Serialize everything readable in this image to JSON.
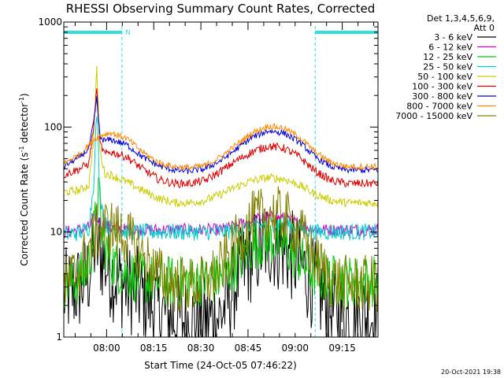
{
  "chart_data": {
    "type": "line",
    "title": "RHESSI Observing Summary Count Rates, Corrected",
    "xlabel": "Start Time (24-Oct-05 07:46:22)",
    "ylabel_main": "Corrected Count Rate (s",
    "ylabel_sup1": "-1",
    "ylabel_mid": " detector",
    "ylabel_sup2": "-1",
    "ylabel_end": ")",
    "y_scale": "log",
    "ylim": [
      1,
      1000
    ],
    "y_ticks": [
      1,
      10,
      100,
      1000
    ],
    "y_tick_labels": [
      "1",
      "10",
      "100",
      "1000"
    ],
    "xlim_minutes": [
      0,
      100
    ],
    "x_ticks_minutes": [
      13.63,
      28.63,
      43.63,
      58.63,
      73.63,
      88.63
    ],
    "x_tick_labels": [
      "08:00",
      "08:15",
      "08:30",
      "08:45",
      "09:00",
      "09:15"
    ],
    "legend_header_1": "Det 1,3,4,5,6,9,",
    "legend_header_2": "Att 0",
    "legend_position": "right",
    "night_marker_label": "N",
    "night_intervals_minutes": [
      [
        0,
        18.5
      ],
      [
        80,
        100
      ]
    ],
    "series": [
      {
        "name": "3 - 6 keV",
        "color": "#000000",
        "x": [
          0,
          5,
          8,
          10,
          12,
          15,
          20,
          25,
          30,
          35,
          40,
          45,
          50,
          55,
          60,
          65,
          70,
          75,
          80,
          85,
          90,
          95,
          100
        ],
        "y": [
          2.5,
          3.0,
          4.0,
          8.0,
          6.0,
          4.0,
          3.0,
          2.5,
          1.8,
          1.5,
          1.4,
          1.4,
          1.6,
          3.5,
          6.0,
          8.0,
          7.0,
          5.0,
          3.0,
          1.8,
          1.6,
          1.6,
          1.6
        ]
      },
      {
        "name": "6 - 12 keV",
        "color": "#cc00cc",
        "x": [
          0,
          5,
          8,
          10,
          12,
          15,
          20,
          30,
          40,
          50,
          55,
          60,
          65,
          70,
          75,
          80,
          90,
          100
        ],
        "y": [
          10,
          10.5,
          11,
          14,
          12,
          11,
          10.5,
          10.5,
          10.5,
          10.5,
          11.5,
          13,
          14,
          13.5,
          12,
          10.5,
          10.5,
          10.5
        ]
      },
      {
        "name": "12 - 25 keV",
        "color": "#00cc00",
        "x": [
          0,
          5,
          8,
          10,
          11,
          12,
          14,
          17,
          20,
          25,
          30,
          40,
          50,
          55,
          60,
          65,
          70,
          75,
          80,
          85,
          90,
          100
        ],
        "y": [
          3.3,
          3.5,
          5.0,
          12,
          24,
          10,
          6.0,
          4.5,
          4.0,
          3.6,
          3.4,
          3.4,
          3.6,
          5.0,
          7.5,
          8.5,
          7.5,
          5.5,
          4.0,
          3.5,
          3.4,
          3.4
        ]
      },
      {
        "name": "25 - 50 keV",
        "color": "#00cccc",
        "x": [
          0,
          5,
          8,
          9.5,
          10.5,
          11.5,
          13,
          15,
          20,
          30,
          40,
          50,
          60,
          65,
          70,
          75,
          80,
          90,
          100
        ],
        "y": [
          9.5,
          9.8,
          11,
          30,
          140,
          25,
          12,
          11,
          10,
          10,
          10,
          10,
          11,
          12,
          12,
          11,
          10,
          10,
          10
        ]
      },
      {
        "name": "50 - 100 keV",
        "color": "#cccc00",
        "x": [
          0,
          5,
          8,
          9.5,
          10.5,
          11.5,
          13,
          15,
          20,
          25,
          30,
          35,
          40,
          45,
          50,
          55,
          60,
          65,
          70,
          75,
          80,
          85,
          90,
          100
        ],
        "y": [
          24,
          25,
          28,
          80,
          360,
          60,
          36,
          35,
          30,
          25,
          21,
          19,
          19,
          20,
          23,
          27,
          31,
          33,
          32,
          28,
          23,
          20,
          19,
          19
        ]
      },
      {
        "name": "100 - 300 keV",
        "color": "#dd0000",
        "x": [
          0,
          5,
          8,
          9.5,
          10.5,
          11.5,
          13,
          15,
          20,
          25,
          30,
          35,
          40,
          45,
          50,
          55,
          60,
          65,
          70,
          75,
          80,
          85,
          90,
          100
        ],
        "y": [
          35,
          40,
          45,
          100,
          230,
          70,
          55,
          58,
          52,
          40,
          32,
          29,
          29,
          31,
          38,
          48,
          58,
          66,
          63,
          52,
          38,
          31,
          29,
          29
        ]
      },
      {
        "name": "300 - 800 keV",
        "color": "#0000dd",
        "x": [
          0,
          5,
          8,
          9.5,
          10.5,
          11.5,
          13,
          15,
          20,
          25,
          30,
          35,
          40,
          45,
          50,
          55,
          60,
          65,
          70,
          75,
          80,
          85,
          90,
          100
        ],
        "y": [
          42,
          52,
          62,
          110,
          190,
          80,
          74,
          76,
          68,
          52,
          43,
          39,
          38,
          40,
          48,
          62,
          80,
          92,
          88,
          72,
          52,
          42,
          39,
          39
        ]
      },
      {
        "name": "800 - 7000 keV",
        "color": "#ff8800",
        "x": [
          0,
          5,
          8,
          10,
          13,
          15,
          20,
          25,
          30,
          35,
          40,
          45,
          50,
          55,
          60,
          65,
          70,
          75,
          80,
          85,
          90,
          100
        ],
        "y": [
          45,
          55,
          68,
          78,
          86,
          88,
          78,
          58,
          46,
          42,
          41,
          43,
          52,
          68,
          88,
          102,
          98,
          80,
          58,
          46,
          42,
          42
        ]
      },
      {
        "name": "7000 - 15000 keV",
        "color": "#808000",
        "x": [
          0,
          5,
          8,
          10,
          12,
          15,
          20,
          25,
          30,
          35,
          40,
          45,
          50,
          55,
          60,
          65,
          70,
          75,
          80,
          85,
          90,
          100
        ],
        "y": [
          3.0,
          4.5,
          7.0,
          9.5,
          11,
          11,
          9.0,
          6.0,
          4.0,
          3.2,
          3.1,
          3.2,
          4.5,
          8.0,
          13,
          15,
          14,
          10,
          5.5,
          3.5,
          3.2,
          3.2
        ]
      }
    ]
  },
  "footer": {
    "timestamp": "20-Oct-2021 19:38"
  },
  "colors": {
    "night_marker": "#33dddd",
    "axes": "#000000",
    "background": "#ffffff"
  }
}
